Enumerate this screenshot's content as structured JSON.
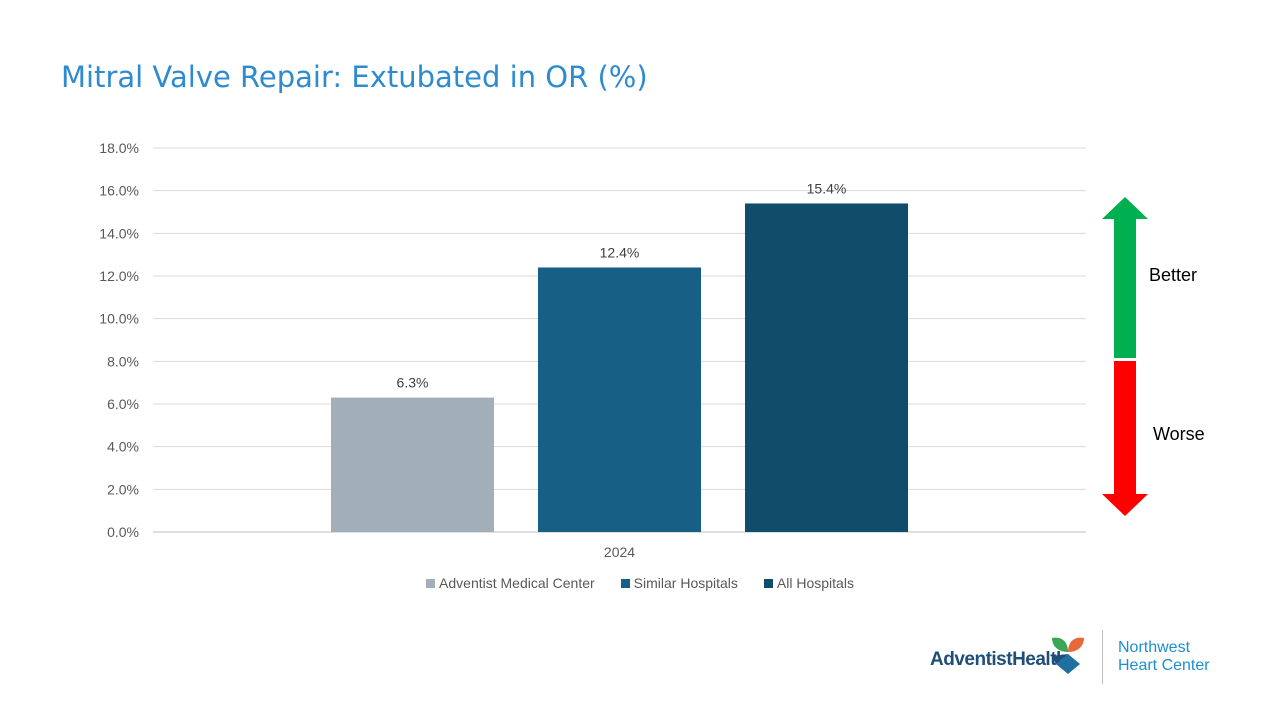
{
  "title": "Mitral Valve Repair: Extubated in OR (%)",
  "chart_data": {
    "type": "bar",
    "title": "Mitral Valve Repair: Extubated in OR (%)",
    "categories": [
      "2024"
    ],
    "series": [
      {
        "name": "Adventist Medical Center",
        "values": [
          6.3
        ],
        "label": "6.3%",
        "color": "#a2afb8"
      },
      {
        "name": "Similar Hospitals",
        "values": [
          12.4
        ],
        "label": "12.4%",
        "color": "#175f84"
      },
      {
        "name": "All Hospitals",
        "values": [
          15.4
        ],
        "label": "15.4%",
        "color": "#0f4d6a"
      }
    ],
    "yticks": [
      "0.0%",
      "2.0%",
      "4.0%",
      "6.0%",
      "8.0%",
      "10.0%",
      "12.0%",
      "14.0%",
      "16.0%",
      "18.0%"
    ],
    "ylim": [
      0,
      18
    ],
    "xlabel": "",
    "ylabel": "",
    "grid": true,
    "legend_position": "bottom"
  },
  "indicator": {
    "better_label": "Better",
    "worse_label": "Worse",
    "better_color": "#00b050",
    "worse_color": "#ff0000"
  },
  "logo": {
    "brand": "AdventistHealth",
    "subtitle_line1": "Northwest",
    "subtitle_line2": "Heart Center"
  }
}
